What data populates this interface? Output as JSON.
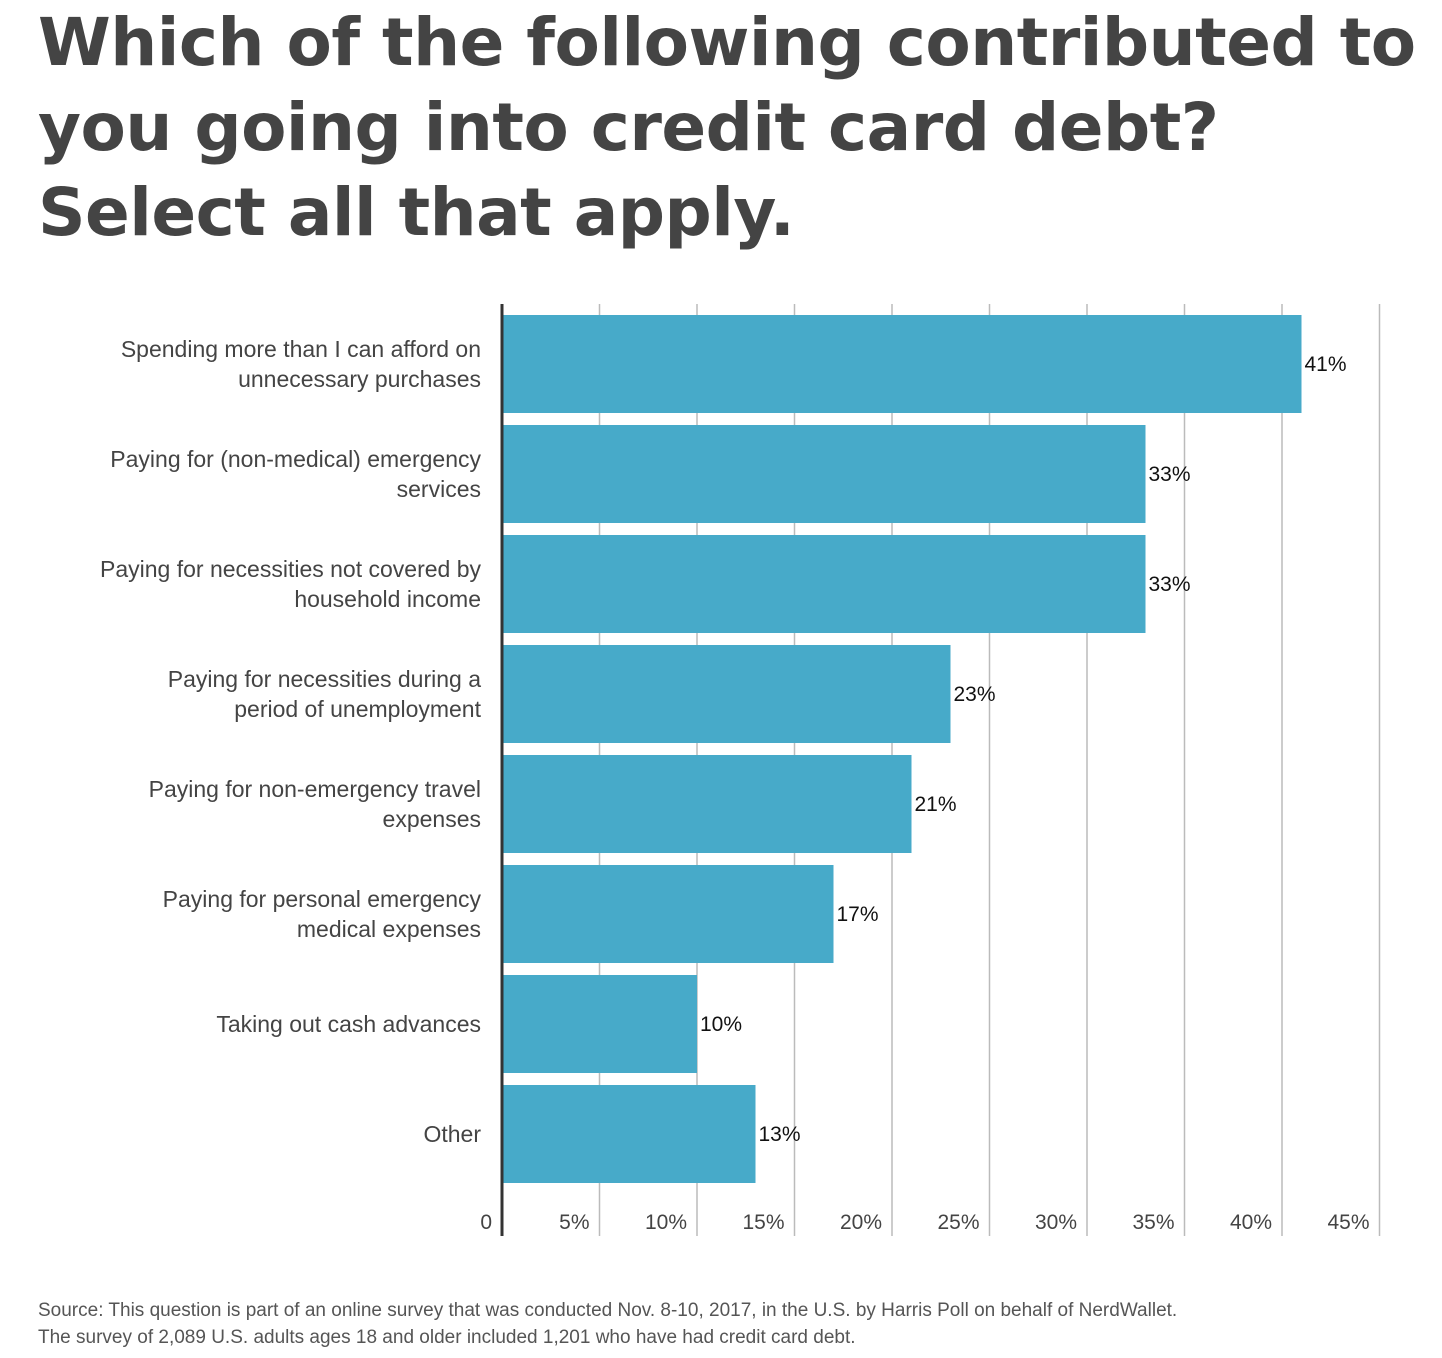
{
  "title_lines": [
    "Which of the following contributed to",
    "you going into credit card debt?",
    "Select all that apply."
  ],
  "source_lines": [
    "Source: This question is part of an online survey that was conducted Nov. 8-10, 2017, in the U.S. by Harris Poll on behalf of NerdWallet.",
    "The survey of 2,089 U.S. adults ages 18 and older included 1,201 who have had credit card debt."
  ],
  "colors": {
    "bar": "#47aac9",
    "grid": "#bbbbbb",
    "axis": "#333333",
    "text": "#444444",
    "value_label": "#111111"
  },
  "chart_data": {
    "type": "bar",
    "orientation": "horizontal",
    "title": "Which of the following contributed to you going into credit card debt? Select all that apply.",
    "categories": [
      [
        "Spending more than I can afford on",
        "unnecessary purchases"
      ],
      [
        "Paying for (non-medical) emergency",
        "services"
      ],
      [
        "Paying for necessities not covered by",
        "household income"
      ],
      [
        "Paying for necessities during a",
        "period of unemployment"
      ],
      [
        "Paying for non-emergency travel",
        "expenses"
      ],
      [
        "Paying for personal emergency",
        "medical expenses"
      ],
      [
        "Taking out cash advances"
      ],
      [
        "Other"
      ]
    ],
    "values": [
      41,
      33,
      33,
      23,
      21,
      17,
      10,
      13
    ],
    "value_labels": [
      "41%",
      "33%",
      "33%",
      "23%",
      "21%",
      "17%",
      "10%",
      "13%"
    ],
    "xlim": [
      0,
      45
    ],
    "x_ticks": [
      0,
      5,
      10,
      15,
      20,
      25,
      30,
      35,
      40,
      45
    ],
    "x_tick_labels": [
      "0",
      "5%",
      "10%",
      "15%",
      "20%",
      "25%",
      "30%",
      "35%",
      "40%",
      "45%"
    ],
    "xlabel": "",
    "ylabel": "",
    "grid": true
  }
}
